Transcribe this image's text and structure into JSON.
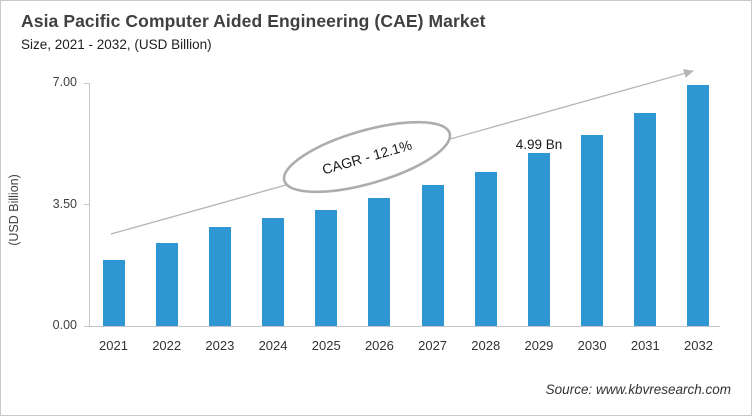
{
  "header": {
    "title": "Asia Pacific Computer Aided Engineering (CAE) Market",
    "subtitle": "Size, 2021 - 2032, (USD Billion)"
  },
  "source": {
    "text": "Source: www.kbvresearch.com"
  },
  "colors": {
    "bar": "#2e97d3",
    "axis": "#c6c6c6",
    "trend_arrow": "#b5b5b5",
    "ellipse_stroke": "#adadad",
    "title_text": "#404040"
  },
  "chart_data": {
    "type": "bar",
    "title": "Asia Pacific Computer Aided Engineering (CAE) Market",
    "subtitle": "Size, 2021 - 2032, (USD Billion)",
    "categories": [
      "2021",
      "2022",
      "2023",
      "2024",
      "2025",
      "2026",
      "2027",
      "2028",
      "2029",
      "2030",
      "2031",
      "2032"
    ],
    "values": [
      1.9,
      2.4,
      2.85,
      3.1,
      3.35,
      3.7,
      4.05,
      4.45,
      4.99,
      5.5,
      6.15,
      6.95
    ],
    "xlabel": "",
    "ylabel": "(USD Billion)",
    "ylim": [
      0,
      7
    ],
    "y_tick_labels": [
      "7.00",
      "3.50",
      "0.00"
    ],
    "grid": false,
    "legend": false,
    "annotations": {
      "cagr": {
        "text": "CAGR - 12.1%"
      },
      "value_label": {
        "text": "4.99 Bn",
        "category": "2029",
        "value": 4.99
      }
    },
    "trendline": {
      "style": "straight-arrow",
      "from_category": "2021",
      "to_category": "2032"
    }
  }
}
